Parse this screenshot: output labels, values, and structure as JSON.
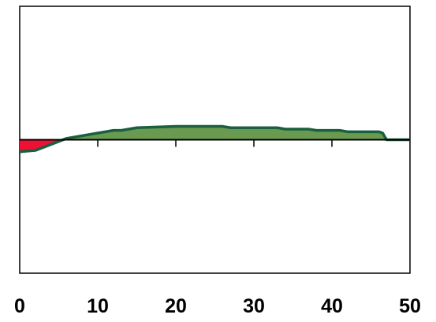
{
  "chart_data": {
    "type": "area",
    "title": "",
    "xlabel": "",
    "ylabel": "",
    "xlim": [
      0,
      50
    ],
    "ylim": [
      -1,
      1
    ],
    "x_ticks": [
      0,
      10,
      20,
      30,
      40,
      50
    ],
    "x_tick_labels": [
      "0",
      "10",
      "20",
      "30",
      "40",
      "50"
    ],
    "y_ticks": [],
    "grid": false,
    "legend": "none",
    "colors": {
      "positive_fill": "#6a9a50",
      "negative_fill": "#ee1133",
      "line": "#1a5f3f",
      "axis": "#000000"
    },
    "x": [
      0,
      2,
      6,
      10,
      12,
      13,
      15,
      20,
      26,
      27,
      33,
      34,
      37,
      38,
      41,
      42,
      46,
      46.5,
      47,
      50
    ],
    "values": [
      -0.09,
      -0.08,
      0.01,
      0.05,
      0.07,
      0.07,
      0.09,
      0.1,
      0.1,
      0.09,
      0.09,
      0.08,
      0.08,
      0.07,
      0.07,
      0.06,
      0.06,
      0.05,
      0.0,
      0.0
    ]
  }
}
